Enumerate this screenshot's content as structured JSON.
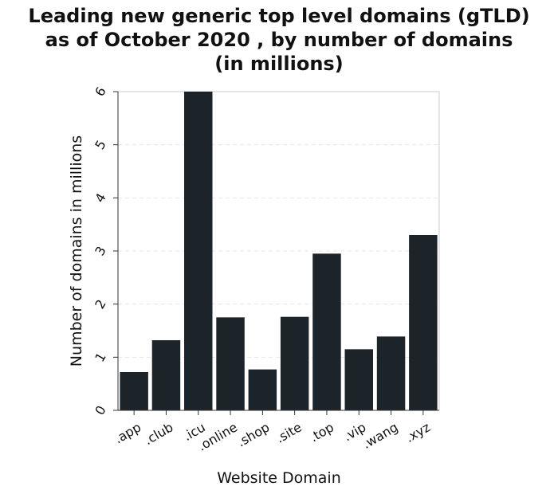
{
  "chart_data": {
    "type": "bar",
    "title_lines": [
      "Leading new generic top level domains (gTLD)",
      "as of October 2020 , by number of domains",
      "(in millions)"
    ],
    "xlabel": "Website Domain",
    "ylabel": "Number of domains in millions",
    "categories": [
      ".app",
      ".club",
      ".icu",
      ".online",
      ".shop",
      ".site",
      ".top",
      ".vip",
      ".wang",
      ".xyz"
    ],
    "values": [
      0.72,
      1.32,
      6.0,
      1.75,
      0.77,
      1.76,
      2.95,
      1.15,
      1.39,
      3.3
    ],
    "ylim": [
      0,
      6
    ],
    "yticks": [
      0,
      1,
      2,
      3,
      4,
      5,
      6
    ],
    "grid": true,
    "bar_color": "#1c2329",
    "grid_color": "#e6e6e6"
  }
}
